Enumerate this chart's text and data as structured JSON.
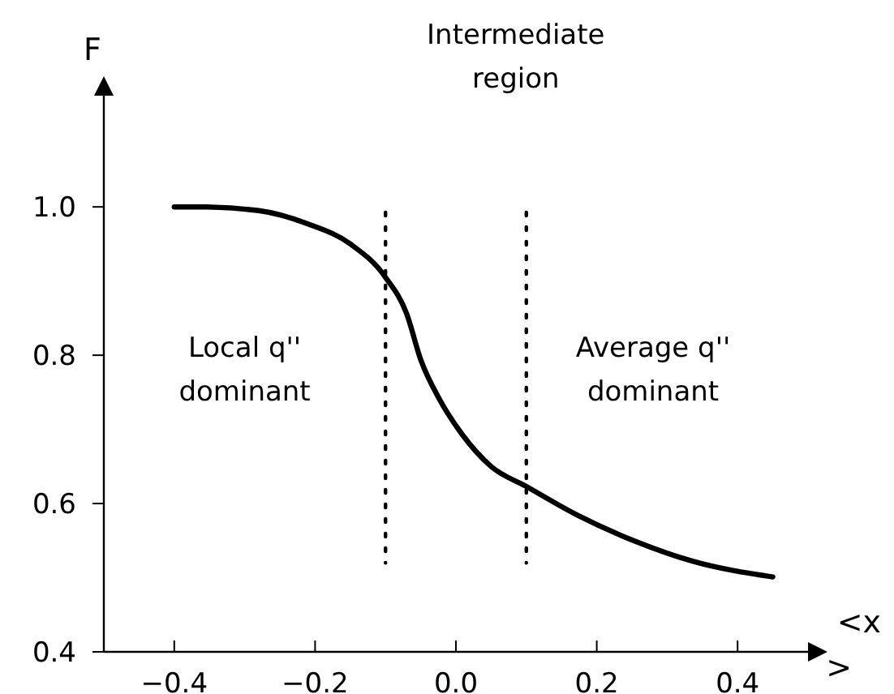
{
  "chart_data": {
    "type": "line",
    "xlabel": "<x>",
    "ylabel": "F",
    "annotations": [
      "Intermediate region",
      "Local q'' dominant",
      "Average q'' dominant"
    ],
    "x": [
      -0.4,
      -0.36,
      -0.28,
      -0.21,
      -0.15,
      -0.1,
      -0.07,
      -0.05,
      -0.023,
      0.009,
      0.05,
      0.1,
      0.173,
      0.255,
      0.337,
      0.45
    ],
    "series": [
      {
        "color": "#000000",
        "values": [
          1.0,
          1.0,
          0.995,
          0.977,
          0.95,
          0.905,
          0.856,
          0.794,
          0.74,
          0.693,
          0.65,
          0.623,
          0.584,
          0.549,
          0.522,
          0.501
        ]
      }
    ],
    "xlim": [
      -0.5,
      0.5
    ],
    "ylim": [
      0.4,
      1.15
    ],
    "xticks": [
      {
        "value": -0.4,
        "label": "−0.4"
      },
      {
        "value": -0.2,
        "label": "−0.2"
      },
      {
        "value": 0,
        "label": "0.0"
      },
      0.2,
      0.4
    ],
    "yticks": [
      {
        "value": 0.4,
        "label": "0.4"
      },
      {
        "value": 0.6,
        "label": "0.6"
      },
      {
        "value": 0.8,
        "label": "0.8"
      },
      {
        "value": 1,
        "label": "1.0"
      }
    ],
    "ref_lines": [
      {
        "axis": "x",
        "value": -0.1,
        "line_style": "dotted",
        "color": "#000000"
      },
      {
        "axis": "x",
        "value": 0.1,
        "line_style": "dotted",
        "color": "#000000"
      }
    ],
    "grid": false,
    "marker": "none",
    "line_style": "solid"
  }
}
